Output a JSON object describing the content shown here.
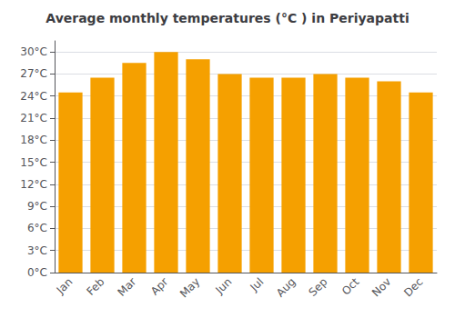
{
  "chart_data": {
    "type": "bar",
    "title": "Average monthly temperatures (°C ) in Periyapatti",
    "categories": [
      "Jan",
      "Feb",
      "Mar",
      "Apr",
      "May",
      "Jun",
      "Jul",
      "Aug",
      "Sep",
      "Oct",
      "Nov",
      "Dec"
    ],
    "values": [
      24.5,
      26.5,
      28.5,
      30.0,
      29.0,
      27.0,
      26.5,
      26.5,
      27.0,
      26.5,
      26.0,
      24.5
    ],
    "color": "#F5A000",
    "ylim": [
      0,
      31.5
    ],
    "yticks": [
      {
        "value": 0,
        "label": "0°C"
      },
      {
        "value": 3,
        "label": "3°C"
      },
      {
        "value": 6,
        "label": "6°C"
      },
      {
        "value": 9,
        "label": "9°C"
      },
      {
        "value": 12,
        "label": "12°C"
      },
      {
        "value": 15,
        "label": "15°C"
      },
      {
        "value": 18,
        "label": "18°C"
      },
      {
        "value": 21,
        "label": "21°C"
      },
      {
        "value": 24,
        "label": "24°C"
      },
      {
        "value": 27,
        "label": "27°C"
      },
      {
        "value": 30,
        "label": "30°C"
      }
    ],
    "grid": true
  }
}
